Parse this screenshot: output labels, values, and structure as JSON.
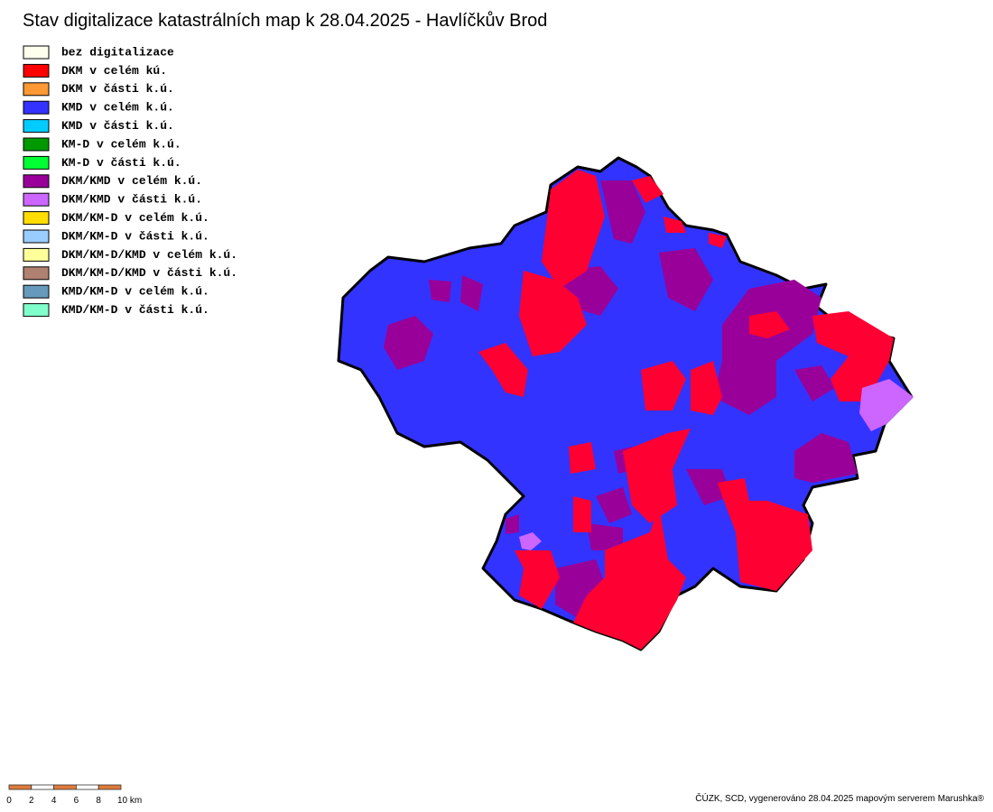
{
  "title": "Stav digitalizace katastrálních map k 28.04.2025 - Havlíčkův Brod",
  "legend": [
    {
      "label": "bez digitalizace",
      "color": "#ffffee"
    },
    {
      "label": "DKM v celém kú.",
      "color": "#ff0000"
    },
    {
      "label": "DKM v části k.ú.",
      "color": "#ff9933"
    },
    {
      "label": "KMD v celém k.ú.",
      "color": "#3333ff"
    },
    {
      "label": "KMD v části k.ú.",
      "color": "#00ccff"
    },
    {
      "label": "KM-D v celém k.ú.",
      "color": "#009900"
    },
    {
      "label": "KM-D v části k.ú.",
      "color": "#00ff33"
    },
    {
      "label": "DKM/KMD v celém k.ú.",
      "color": "#990099"
    },
    {
      "label": "DKM/KMD v části k.ú.",
      "color": "#cc66ff"
    },
    {
      "label": "DKM/KM-D v celém k.ú.",
      "color": "#ffdd00"
    },
    {
      "label": "DKM/KM-D v části k.ú.",
      "color": "#99ccff"
    },
    {
      "label": "DKM/KM-D/KMD v celém k.ú.",
      "color": "#ffff99"
    },
    {
      "label": "DKM/KM-D/KMD v části k.ú.",
      "color": "#b08070"
    },
    {
      "label": "KMD/KM-D v celém k.ú.",
      "color": "#6699bb"
    },
    {
      "label": "KMD/KM-D v části k.ú.",
      "color": "#80ffcc"
    }
  ],
  "scale": {
    "labels": [
      "0",
      "2",
      "4",
      "6",
      "8",
      "10 km"
    ]
  },
  "credit": "ČÚZK, SCD, vygenerováno 28.04.2025 mapovým serverem Marushka®"
}
